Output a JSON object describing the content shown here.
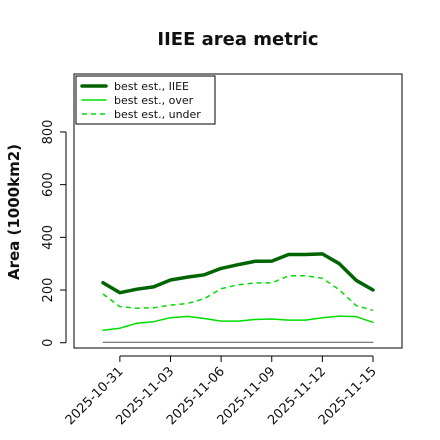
{
  "chart_data": {
    "type": "line",
    "title": "IIEE area metric",
    "xlabel": "",
    "ylabel": "Area (1000km2)",
    "x": [
      "2025-10-30",
      "2025-10-31",
      "2025-11-01",
      "2025-11-02",
      "2025-11-03",
      "2025-11-04",
      "2025-11-05",
      "2025-11-06",
      "2025-11-07",
      "2025-11-08",
      "2025-11-09",
      "2025-11-10",
      "2025-11-11",
      "2025-11-12",
      "2025-11-13",
      "2025-11-14",
      "2025-11-15"
    ],
    "x_tick_labels": [
      "2025-10-31",
      "2025-11-03",
      "2025-11-06",
      "2025-11-09",
      "2025-11-12",
      "2025-11-15"
    ],
    "y_ticks": [
      0,
      200,
      400,
      600,
      800
    ],
    "ylim": [
      -20,
      1020
    ],
    "grid": false,
    "legend_position": "top-left",
    "series": [
      {
        "name": "best est., IIEE",
        "color": "#006400",
        "style": "solid-thick",
        "values": [
          228,
          190,
          203,
          212,
          238,
          249,
          258,
          282,
          296,
          309,
          310,
          335,
          335,
          337,
          300,
          237,
          200
        ]
      },
      {
        "name": "best est., over",
        "color": "#00dd00",
        "style": "solid",
        "values": [
          47,
          55,
          74,
          80,
          95,
          100,
          92,
          82,
          82,
          88,
          90,
          86,
          86,
          95,
          101,
          99,
          77
        ]
      },
      {
        "name": "best est., under",
        "color": "#00dd00",
        "style": "dashed",
        "values": [
          185,
          137,
          131,
          133,
          143,
          149,
          167,
          205,
          220,
          227,
          227,
          254,
          254,
          245,
          201,
          141,
          123
        ]
      },
      {
        "name": "",
        "color": "#555555",
        "style": "solid-thin",
        "values": [
          2,
          2,
          2,
          2,
          2,
          2,
          2,
          2,
          2,
          2,
          2,
          2,
          2,
          2,
          2,
          2,
          2
        ]
      }
    ]
  }
}
